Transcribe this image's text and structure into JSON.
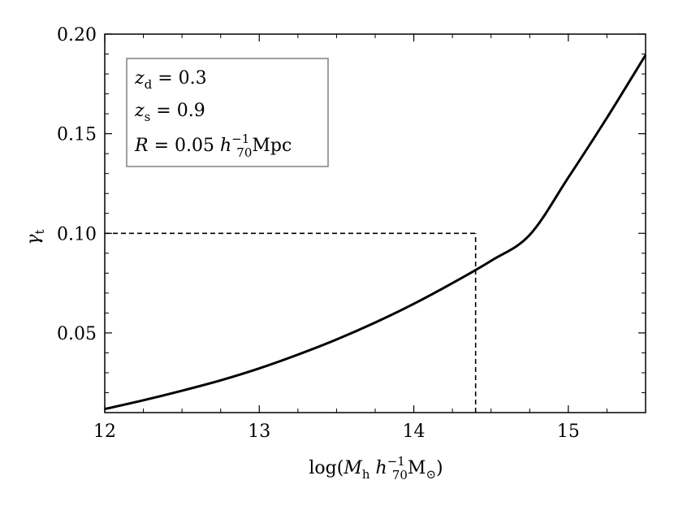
{
  "chart_data": {
    "type": "line",
    "xlabel": {
      "prefix": "log(",
      "var": "M",
      "var_sub": "h",
      "space": " ",
      "unit_var": "h",
      "unit_sub": "70",
      "unit_sup": "−1",
      "unit": "M",
      "unit_sub2": "⊙",
      "suffix": ")"
    },
    "ylabel": {
      "var": "γ",
      "sub": "t"
    },
    "xlim": [
      12.0,
      15.5
    ],
    "ylim": [
      0.01,
      0.2
    ],
    "xticks": [
      12,
      13,
      14,
      15
    ],
    "xtick_labels": [
      "12",
      "13",
      "14",
      "15"
    ],
    "yticks": [
      0.05,
      0.1,
      0.15,
      0.2
    ],
    "ytick_labels": [
      "0.05",
      "0.10",
      "0.15",
      "0.20"
    ],
    "grid": false,
    "series": [
      {
        "style": "solid",
        "color": "#000000",
        "x": [
          12.0,
          12.25,
          12.5,
          12.75,
          13.0,
          13.25,
          13.5,
          13.75,
          14.0,
          14.25,
          14.5,
          14.75,
          15.0,
          15.25,
          15.5
        ],
        "y": [
          0.0118,
          0.0162,
          0.021,
          0.0262,
          0.0322,
          0.0391,
          0.0467,
          0.0552,
          0.0646,
          0.075,
          0.0862,
          0.0992,
          0.128,
          0.158,
          0.1895
        ]
      }
    ],
    "reference_lines": [
      {
        "style": "dashed",
        "x": [
          12.0,
          14.4
        ],
        "y": [
          0.1,
          0.1
        ]
      },
      {
        "style": "dashed",
        "x": [
          14.4,
          14.4
        ],
        "y": [
          0.01,
          0.1
        ]
      }
    ],
    "annotation_box": {
      "lines": [
        {
          "var": "z",
          "sub": "d",
          "rest": " = 0.3"
        },
        {
          "var": "z",
          "sub": "s",
          "rest": " = 0.9"
        },
        {
          "var": "R",
          "sub": "",
          "rest": " = 0.05 ",
          "var2": "h",
          "sub2": "70",
          "sup2": "−1",
          "tail": "Mpc"
        }
      ]
    }
  }
}
